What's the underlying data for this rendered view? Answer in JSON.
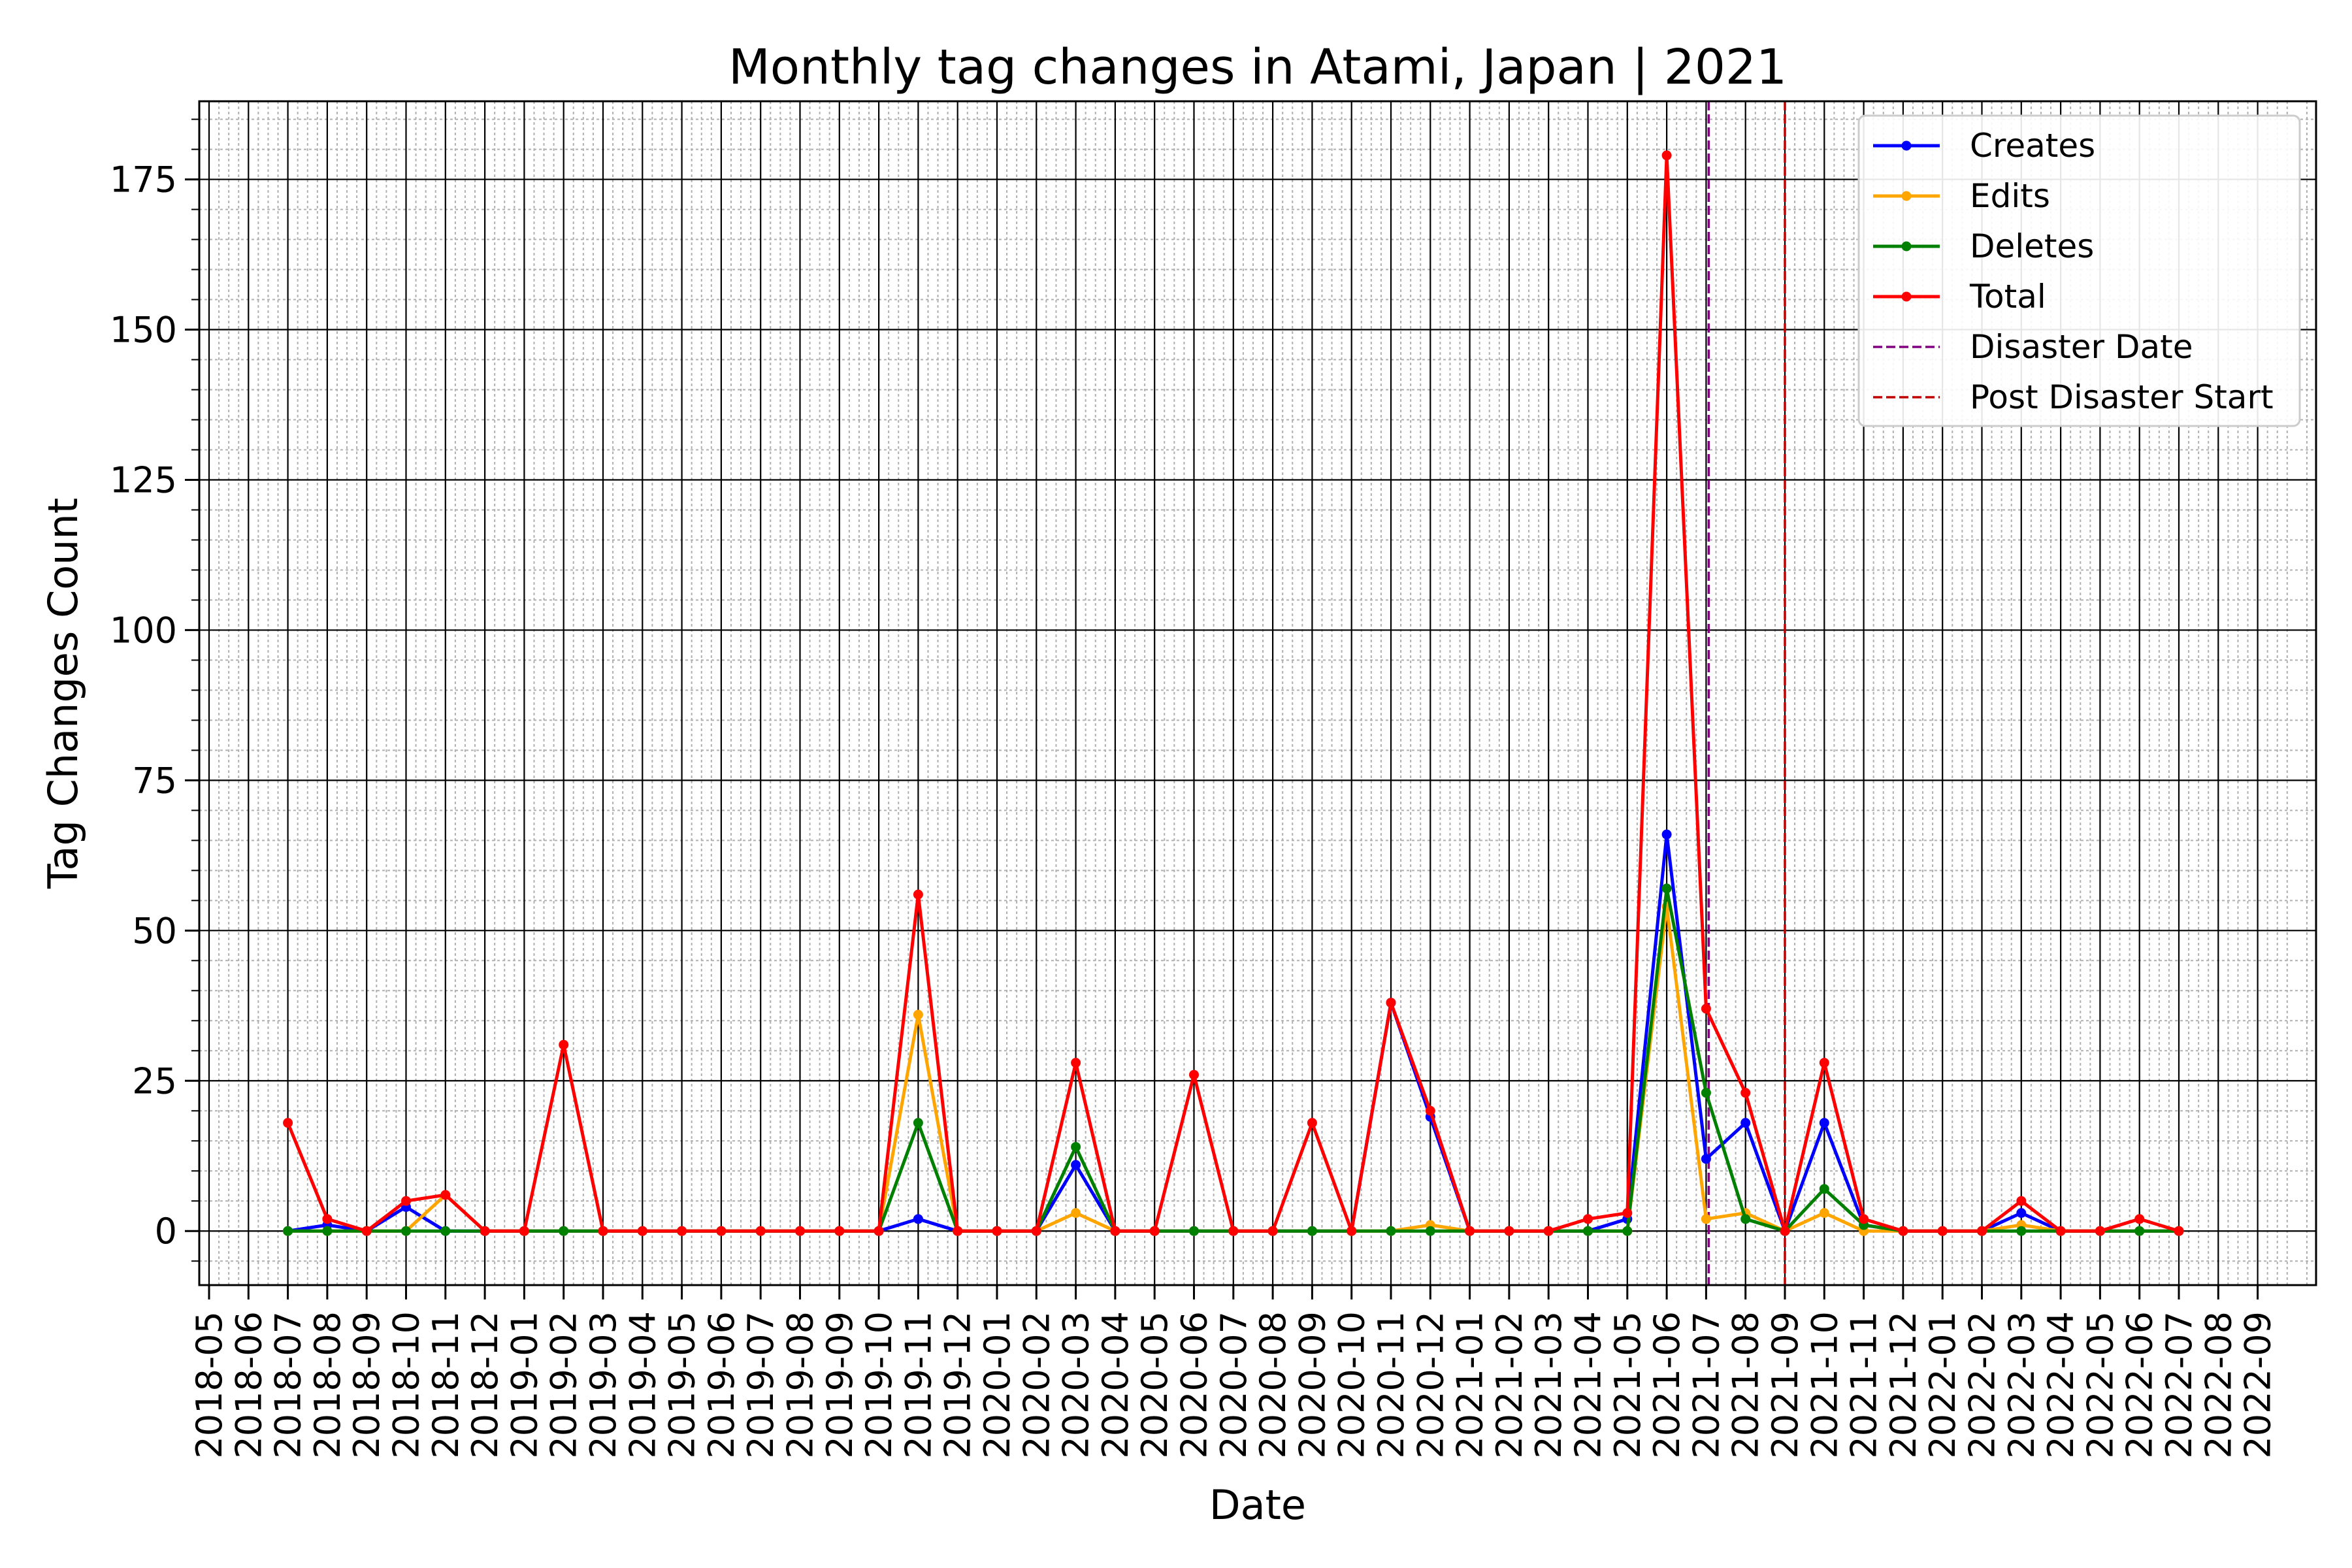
{
  "chart_data": {
    "type": "line",
    "title": "Monthly tag changes in Atami, Japan | 2021",
    "xlabel": "Date",
    "ylabel": "Tag Changes Count",
    "ylim": [
      -9,
      188
    ],
    "yticks": [
      0,
      25,
      50,
      75,
      100,
      125,
      150,
      175
    ],
    "grid": true,
    "legend_position": "top-right",
    "x_tick_labels": [
      "2018-05",
      "2018-06",
      "2018-07",
      "2018-08",
      "2018-09",
      "2018-10",
      "2018-11",
      "2018-12",
      "2019-01",
      "2019-02",
      "2019-03",
      "2019-04",
      "2019-05",
      "2019-06",
      "2019-07",
      "2019-08",
      "2019-09",
      "2019-10",
      "2019-11",
      "2019-12",
      "2020-01",
      "2020-02",
      "2020-03",
      "2020-04",
      "2020-05",
      "2020-06",
      "2020-07",
      "2020-08",
      "2020-09",
      "2020-10",
      "2020-11",
      "2020-12",
      "2021-01",
      "2021-02",
      "2021-03",
      "2021-04",
      "2021-05",
      "2021-06",
      "2021-07",
      "2021-08",
      "2021-09",
      "2021-10",
      "2021-11",
      "2021-12",
      "2022-01",
      "2022-02",
      "2022-03",
      "2022-04",
      "2022-05",
      "2022-06",
      "2022-07",
      "2022-08",
      "2022-09"
    ],
    "x": [
      "2018-07",
      "2018-08",
      "2018-09",
      "2018-10",
      "2018-11",
      "2018-12",
      "2019-01",
      "2019-02",
      "2019-03",
      "2019-04",
      "2019-05",
      "2019-06",
      "2019-07",
      "2019-08",
      "2019-09",
      "2019-10",
      "2019-11",
      "2019-12",
      "2020-01",
      "2020-02",
      "2020-03",
      "2020-04",
      "2020-05",
      "2020-06",
      "2020-07",
      "2020-08",
      "2020-09",
      "2020-10",
      "2020-11",
      "2020-12",
      "2021-01",
      "2021-02",
      "2021-03",
      "2021-04",
      "2021-05",
      "2021-06",
      "2021-07",
      "2021-08",
      "2021-09",
      "2021-10",
      "2021-11",
      "2021-12",
      "2022-01",
      "2022-02",
      "2022-03",
      "2022-04",
      "2022-05",
      "2022-06",
      "2022-07"
    ],
    "series": [
      {
        "name": "Creates",
        "color": "#0000ff",
        "values": [
          0,
          1,
          0,
          4,
          0,
          0,
          0,
          0,
          0,
          0,
          0,
          0,
          0,
          0,
          0,
          0,
          2,
          0,
          0,
          0,
          11,
          0,
          0,
          0,
          0,
          0,
          0,
          0,
          38,
          19,
          0,
          0,
          0,
          0,
          2,
          66,
          12,
          18,
          0,
          18,
          1,
          0,
          0,
          0,
          3,
          0,
          0,
          0,
          0
        ]
      },
      {
        "name": "Edits",
        "color": "#ffa500",
        "values": [
          0,
          0,
          0,
          0,
          6,
          0,
          0,
          0,
          0,
          0,
          0,
          0,
          0,
          0,
          0,
          0,
          36,
          0,
          0,
          0,
          3,
          0,
          0,
          0,
          0,
          0,
          0,
          0,
          0,
          1,
          0,
          0,
          0,
          0,
          0,
          54,
          2,
          3,
          0,
          3,
          0,
          0,
          0,
          0,
          1,
          0,
          0,
          0,
          0
        ]
      },
      {
        "name": "Deletes",
        "color": "#008000",
        "values": [
          0,
          0,
          0,
          0,
          0,
          0,
          0,
          0,
          0,
          0,
          0,
          0,
          0,
          0,
          0,
          0,
          18,
          0,
          0,
          0,
          14,
          0,
          0,
          0,
          0,
          0,
          0,
          0,
          0,
          0,
          0,
          0,
          0,
          0,
          0,
          57,
          23,
          2,
          0,
          7,
          1,
          0,
          0,
          0,
          0,
          0,
          0,
          0,
          0
        ]
      },
      {
        "name": "Total",
        "color": "#ff0000",
        "values": [
          18,
          2,
          0,
          5,
          6,
          0,
          0,
          31,
          0,
          0,
          0,
          0,
          0,
          0,
          0,
          0,
          56,
          0,
          0,
          0,
          28,
          0,
          0,
          26,
          0,
          0,
          18,
          0,
          38,
          20,
          0,
          0,
          0,
          2,
          3,
          179,
          37,
          23,
          0,
          28,
          2,
          0,
          0,
          0,
          5,
          0,
          0,
          2,
          0
        ]
      }
    ],
    "vlines": [
      {
        "name": "Disaster Date",
        "color": "#800080",
        "style": "dashed",
        "date": "2021-07-03"
      },
      {
        "name": "Post Disaster Start",
        "color": "#c00000",
        "style": "dashed",
        "date": "2021-09-01"
      }
    ]
  }
}
